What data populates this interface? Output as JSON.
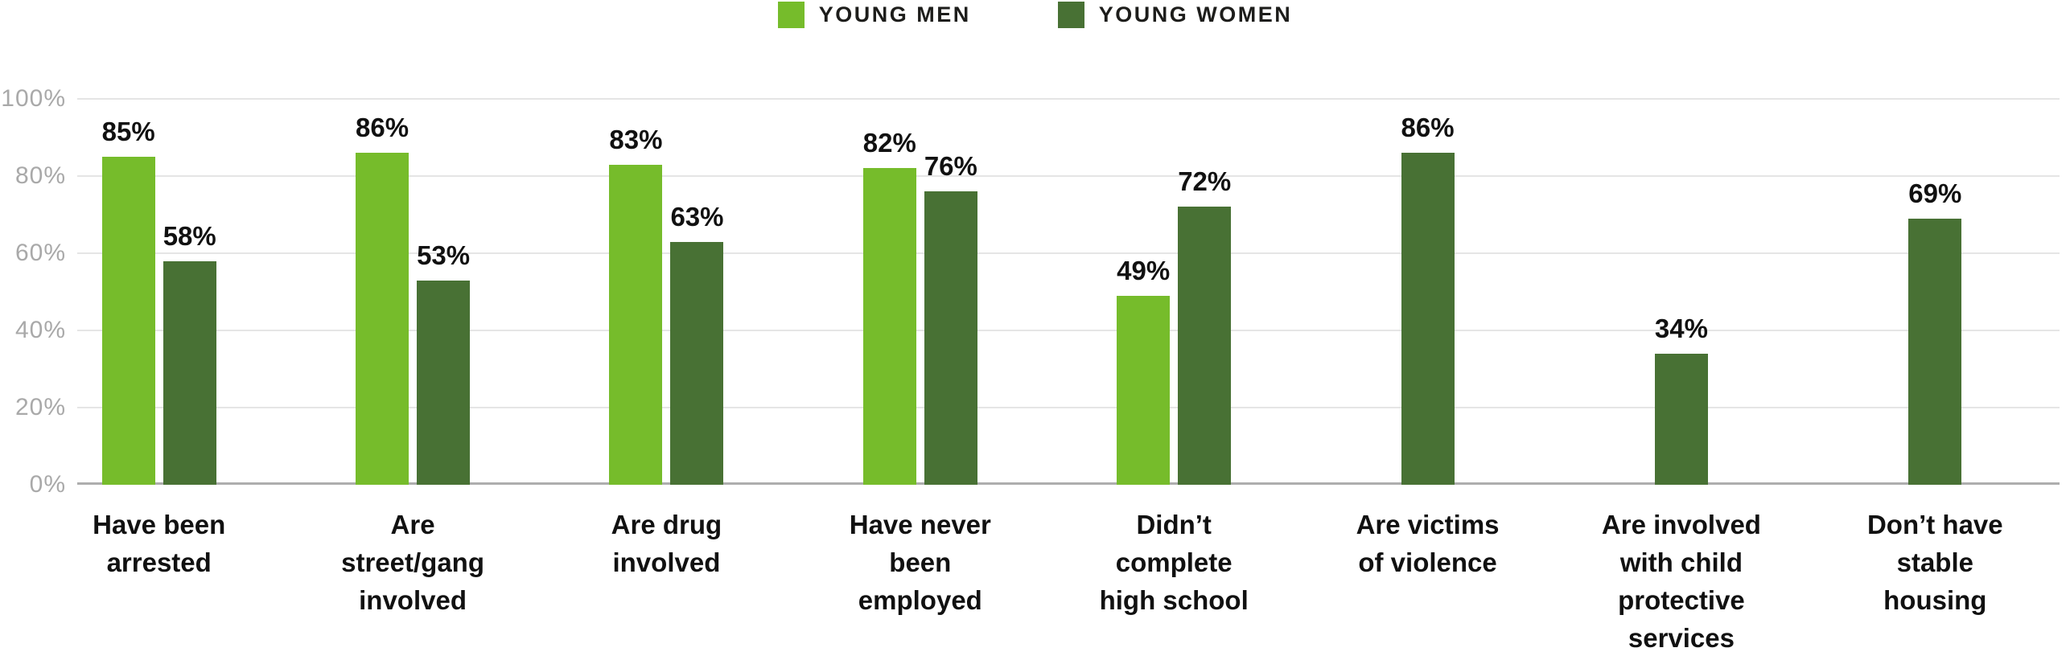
{
  "legend": {
    "items": [
      {
        "label": "YOUNG MEN",
        "color": "#76bc2b"
      },
      {
        "label": "YOUNG WOMEN",
        "color": "#487134"
      }
    ]
  },
  "y_axis": {
    "ticks": [
      {
        "label": "100%",
        "value": 100
      },
      {
        "label": "80%",
        "value": 80
      },
      {
        "label": "60%",
        "value": 60
      },
      {
        "label": "40%",
        "value": 40
      },
      {
        "label": "20%",
        "value": 20
      },
      {
        "label": "0%",
        "value": 0
      }
    ]
  },
  "chart_data": {
    "type": "bar",
    "title": "",
    "xlabel": "",
    "ylabel": "",
    "ylim": [
      0,
      100
    ],
    "grid": true,
    "legend_position": "top-center",
    "value_label_format": "{value}%",
    "categories": [
      "Have been\narrested",
      "Are\nstreet/gang\ninvolved",
      "Are drug\ninvolved",
      "Have never\nbeen\nemployed",
      "Didn’t\ncomplete\nhigh school",
      "Are victims\nof violence",
      "Are involved\nwith child\nprotective\nservices",
      "Don’t have\nstable\nhousing"
    ],
    "series": [
      {
        "name": "YOUNG MEN",
        "color": "#76bc2b",
        "values": [
          85,
          86,
          83,
          82,
          49,
          null,
          null,
          null
        ]
      },
      {
        "name": "YOUNG WOMEN",
        "color": "#487134",
        "values": [
          58,
          53,
          63,
          76,
          72,
          86,
          34,
          69
        ]
      }
    ],
    "colors": {
      "gridline": "#e5e5e5",
      "baseline": "#aeaeae",
      "tick_text": "#a9a9a9",
      "label_text": "#111111"
    }
  }
}
